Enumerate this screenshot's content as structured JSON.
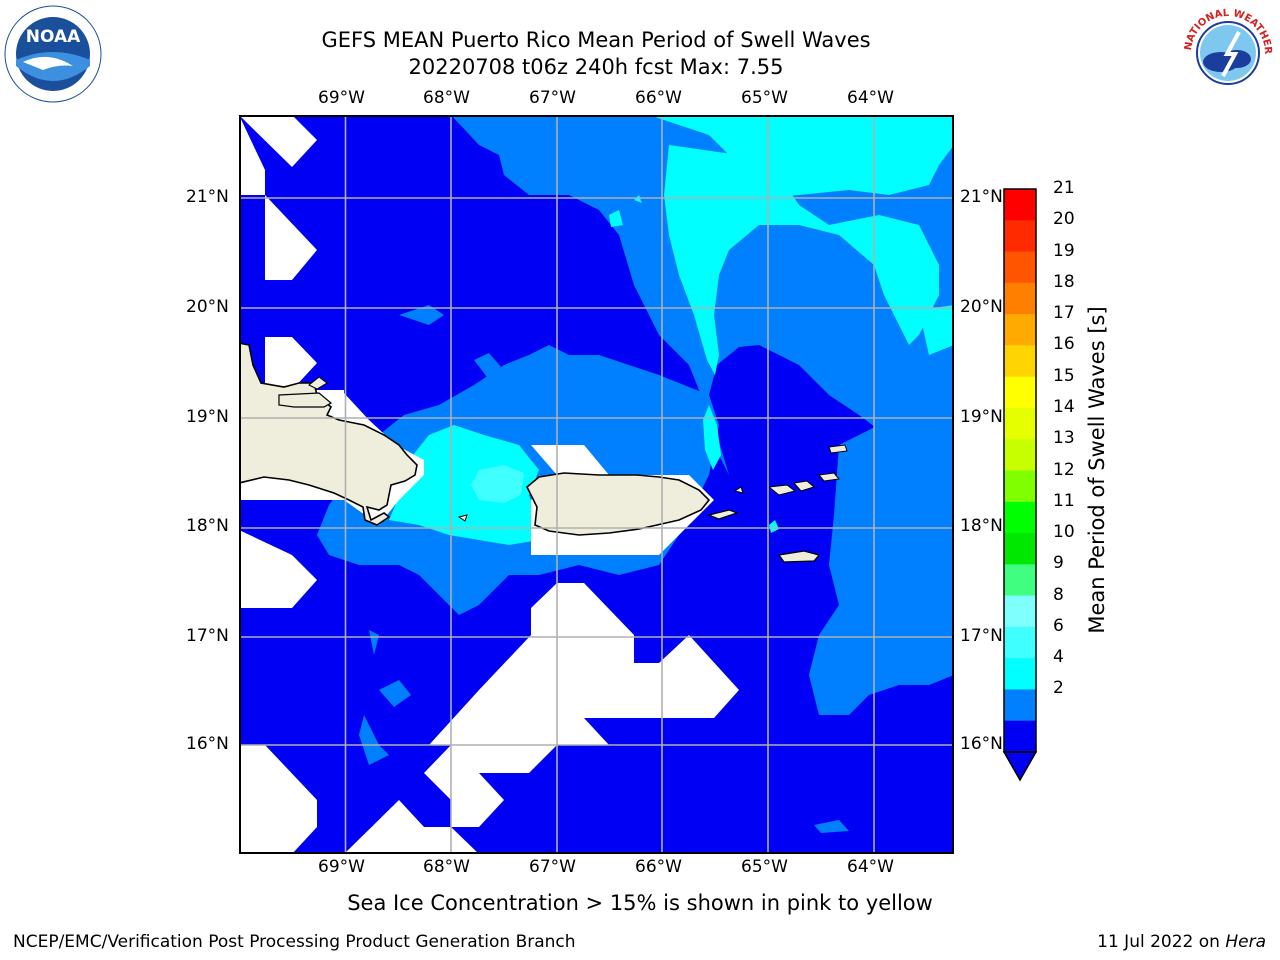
{
  "title": {
    "line1": "GEFS MEAN Puerto Rico Mean Period of Swell Waves",
    "line2": "20220708 t06z 240h fcst   Max: 7.55"
  },
  "map": {
    "lon_labels": [
      "69°W",
      "68°W",
      "67°W",
      "66°W",
      "65°W",
      "64°W"
    ],
    "lat_labels": [
      "21°N",
      "20°N",
      "19°N",
      "18°N",
      "17°N",
      "16°N"
    ],
    "land_color": "#efeedd",
    "contour_colors": {
      "2-4": "#0000f5",
      "4-6": "#0080ff",
      "6-7": "#00ffff",
      "7-8": "#40ffff"
    }
  },
  "colorbar": {
    "title": "Mean Period of Swell Waves [s]",
    "labels": [
      "21",
      "20",
      "19",
      "18",
      "17",
      "16",
      "15",
      "14",
      "13",
      "12",
      "11",
      "10",
      "9",
      "8",
      "6",
      "4",
      "2"
    ],
    "colors": [
      "#ff0000",
      "#ff2a00",
      "#ff5500",
      "#ff8000",
      "#ffaa00",
      "#ffd500",
      "#ffff00",
      "#e5ff00",
      "#c8ff00",
      "#80ff00",
      "#00ff00",
      "#00e800",
      "#40ff80",
      "#80ffff",
      "#40ffff",
      "#00ffff",
      "#0080ff",
      "#0000f5"
    ]
  },
  "note": "Sea Ice Concentration > 15% is shown in pink to yellow",
  "footer": {
    "left": "NCEP/EMC/Verification Post Processing Product Generation Branch",
    "right_date": "11 Jul 2022 on",
    "right_host": "Hera"
  },
  "logos": {
    "left": "NOAA",
    "right": "NATIONAL WEATHER SERVICE"
  }
}
